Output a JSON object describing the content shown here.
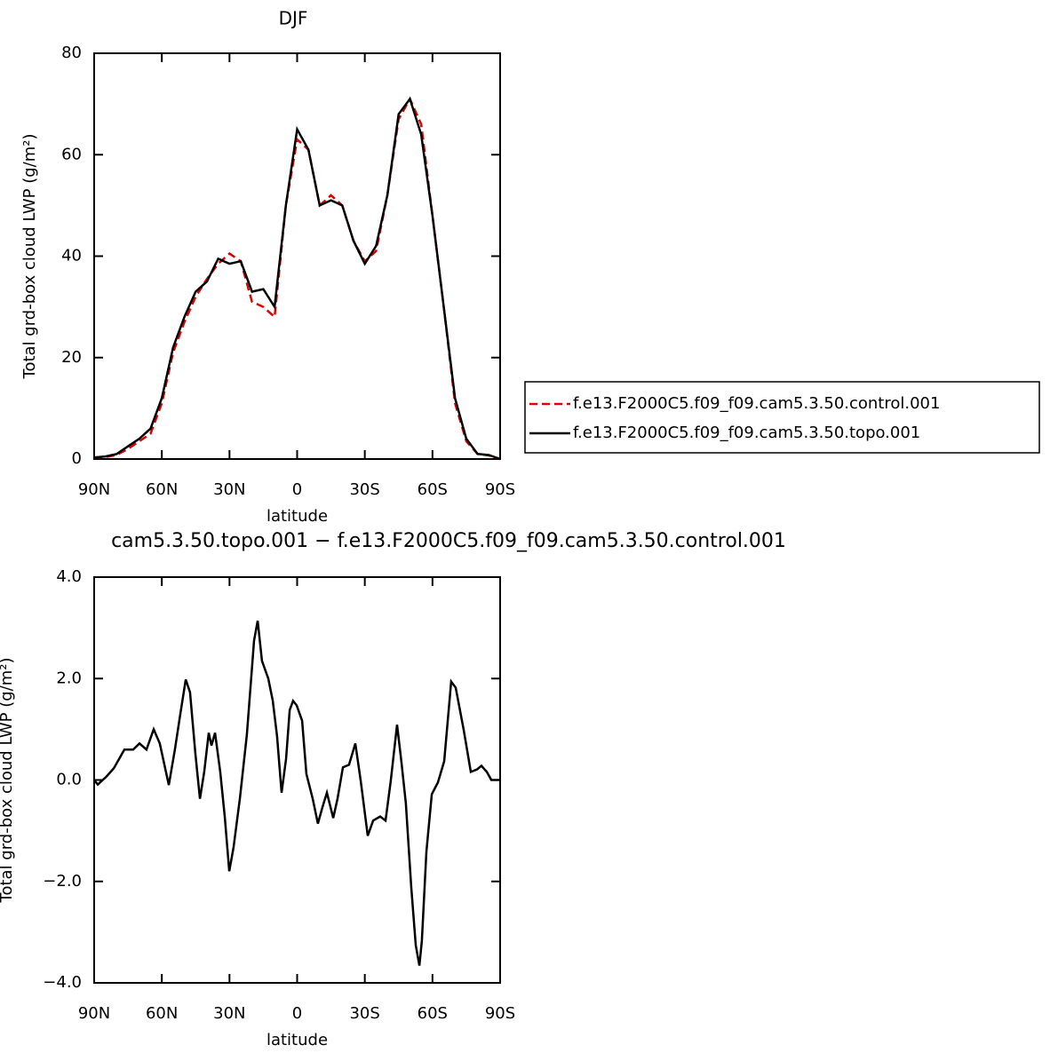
{
  "chart_data": [
    {
      "type": "line",
      "title": "DJF",
      "xlabel": "latitude",
      "ylabel": "Total grd-box cloud LWP (g/m²)",
      "xlim": [
        90,
        -90
      ],
      "ylim": [
        0,
        80
      ],
      "xticks": [
        {
          "value": 90,
          "label": "90N"
        },
        {
          "value": 60,
          "label": "60N"
        },
        {
          "value": 30,
          "label": "30N"
        },
        0,
        {
          "value": -30,
          "label": "30S"
        },
        {
          "value": -60,
          "label": "60S"
        },
        {
          "value": -90,
          "label": "90S"
        }
      ],
      "yticks": [
        0,
        20,
        40,
        60,
        80
      ],
      "legend": "outside-right",
      "x": [
        90,
        85,
        80,
        75,
        70,
        65,
        60,
        55,
        50,
        45,
        40,
        35,
        30,
        25,
        20,
        15,
        10,
        5,
        0,
        -5,
        -10,
        -15,
        -20,
        -25,
        -30,
        -35,
        -40,
        -45,
        -50,
        -55,
        -60,
        -65,
        -70,
        -75,
        -80,
        -85,
        -90
      ],
      "series": [
        {
          "name": "f.e13.F2000C5.f09_f09.cam5.3.50.control.001",
          "color": "#e00000",
          "dash": true,
          "values": [
            0.3,
            0.4,
            0.8,
            2,
            3.5,
            5,
            11,
            21,
            27,
            32,
            35.5,
            38.5,
            40.5,
            39,
            31,
            30,
            28,
            50,
            63,
            61,
            50,
            52,
            50,
            43,
            39,
            41,
            52,
            67,
            71,
            66,
            48,
            30,
            11,
            3.5,
            1,
            0.7,
            0
          ]
        },
        {
          "name": "f.e13.F2000C5.f09_f09.cam5.3.50.topo.001",
          "color": "#000000",
          "dash": false,
          "values": [
            0.3,
            0.5,
            1,
            2.5,
            4,
            6,
            12,
            22,
            28,
            33,
            35,
            39.5,
            38.5,
            39,
            33,
            33.5,
            30,
            50,
            65,
            61,
            50,
            51,
            50,
            43,
            38.5,
            42,
            52,
            68,
            71,
            64,
            48,
            30,
            12,
            4,
            1,
            0.8,
            0
          ]
        }
      ]
    },
    {
      "type": "line",
      "title": "cam5.3.50.topo.001 − f.e13.F2000C5.f09_f09.cam5.3.50.control.001",
      "xlabel": "latitude",
      "ylabel": "Total grd-box cloud LWP (g/m²)",
      "xlim": [
        90,
        -90
      ],
      "ylim": [
        -4,
        4
      ],
      "xticks": [
        {
          "value": 90,
          "label": "90N"
        },
        {
          "value": 60,
          "label": "60N"
        },
        {
          "value": 30,
          "label": "30N"
        },
        0,
        {
          "value": -30,
          "label": "30S"
        },
        {
          "value": -60,
          "label": "60S"
        },
        {
          "value": -90,
          "label": "90S"
        }
      ],
      "yticks": [
        {
          "value": -4,
          "label": "−4.0"
        },
        {
          "value": -2,
          "label": "−2.0"
        },
        {
          "value": 0,
          "label": "0.0"
        },
        {
          "value": 2,
          "label": "2.0"
        },
        {
          "value": 4,
          "label": "4.0"
        }
      ],
      "x": [
        90,
        88.4,
        84.5,
        81.3,
        76.6,
        72.7,
        69.9,
        66.8,
        63.6,
        60.9,
        56.9,
        54.2,
        51.8,
        49.4,
        47.5,
        45.1,
        43.1,
        41.2,
        39.2,
        38.0,
        36.4,
        34.1,
        32.1,
        30.1,
        28.2,
        25.4,
        22.3,
        19.1,
        17.5,
        15.6,
        12.8,
        10.8,
        8.9,
        6.9,
        4.9,
        3.3,
        1.8,
        0.2,
        -2.2,
        -4.1,
        -6.9,
        -9.2,
        -11.2,
        -13.2,
        -16.0,
        -17.9,
        -20.3,
        -23.0,
        -25.8,
        -28.2,
        -31.3,
        -33.7,
        -36.8,
        -39.2,
        -41.5,
        -44.3,
        -46.3,
        -48.2,
        -50.6,
        -52.6,
        -54.2,
        -55.3,
        -57.3,
        -59.7,
        -62.4,
        -65.2,
        -68.3,
        -70.3,
        -73.8,
        -77.0,
        -79.8,
        -81.7,
        -84.1,
        -86.1,
        -90
      ],
      "values": [
        0,
        -0.09,
        0.07,
        0.23,
        0.6,
        0.6,
        0.72,
        0.6,
        1.0,
        0.72,
        -0.1,
        0.6,
        1.3,
        1.98,
        1.73,
        0.51,
        -0.37,
        0.16,
        0.93,
        0.68,
        0.93,
        0.16,
        -0.72,
        -1.8,
        -1.33,
        -0.37,
        0.89,
        2.75,
        3.14,
        2.35,
        2.0,
        1.56,
        0.86,
        -0.25,
        0.42,
        1.38,
        1.56,
        1.47,
        1.17,
        0.12,
        -0.37,
        -0.86,
        -0.54,
        -0.25,
        -0.75,
        -0.37,
        0.25,
        0.3,
        0.72,
        -0.02,
        -1.1,
        -0.8,
        -0.72,
        -0.8,
        -0.02,
        1.09,
        0.33,
        -0.46,
        -2.12,
        -3.26,
        -3.66,
        -3.17,
        -1.42,
        -0.28,
        -0.05,
        0.37,
        1.94,
        1.82,
        1.0,
        0.16,
        0.21,
        0.28,
        0.16,
        0,
        0
      ],
      "color": "#000000"
    }
  ]
}
